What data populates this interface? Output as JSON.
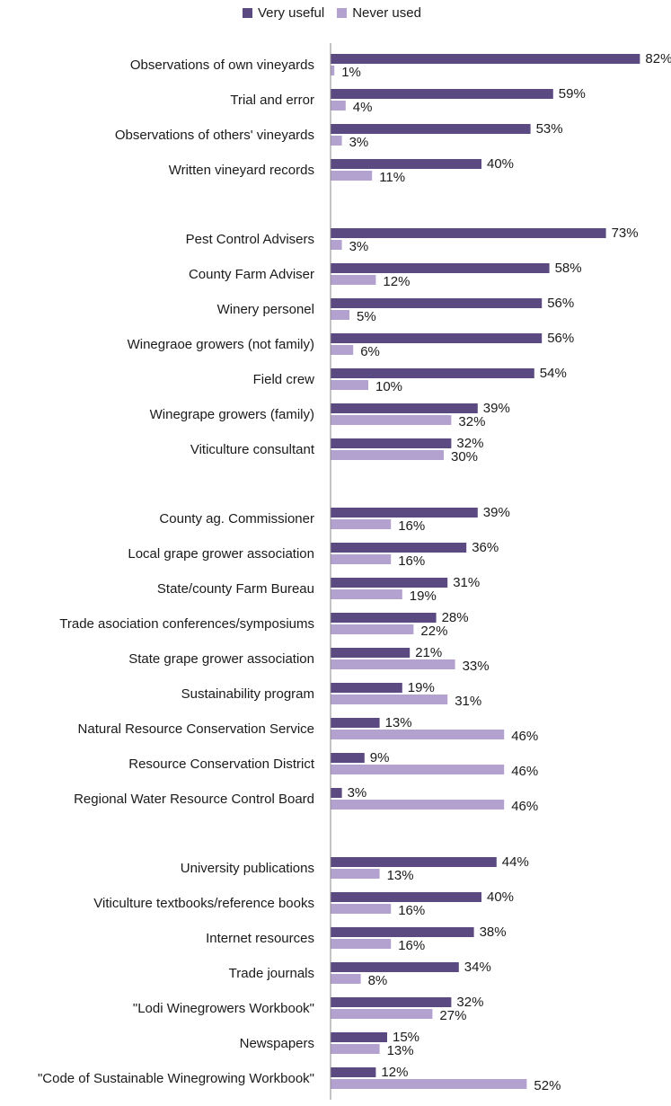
{
  "chart_data": {
    "type": "bar",
    "orientation": "horizontal",
    "xlim": [
      0,
      100
    ],
    "grid": false,
    "legend_position": "top",
    "colors": {
      "very_useful": "#5b4a82",
      "never_used": "#b3a2cf"
    },
    "series": [
      {
        "name": "Very useful",
        "key": "very_useful"
      },
      {
        "name": "Never used",
        "key": "never_used"
      }
    ],
    "groups": [
      {
        "items": [
          {
            "label": "Observations of own vineyards",
            "very_useful": 82,
            "never_used": 1
          },
          {
            "label": "Trial and error",
            "very_useful": 59,
            "never_used": 4
          },
          {
            "label": "Observations of others' vineyards",
            "very_useful": 53,
            "never_used": 3
          },
          {
            "label": "Written vineyard records",
            "very_useful": 40,
            "never_used": 11
          }
        ]
      },
      {
        "items": [
          {
            "label": "Pest Control Advisers",
            "very_useful": 73,
            "never_used": 3
          },
          {
            "label": "County Farm Adviser",
            "very_useful": 58,
            "never_used": 12
          },
          {
            "label": "Winery personel",
            "very_useful": 56,
            "never_used": 5
          },
          {
            "label": "Winegraoe growers (not family)",
            "very_useful": 56,
            "never_used": 6
          },
          {
            "label": "Field crew",
            "very_useful": 54,
            "never_used": 10
          },
          {
            "label": "Winegrape growers (family)",
            "very_useful": 39,
            "never_used": 32
          },
          {
            "label": "Viticulture consultant",
            "very_useful": 32,
            "never_used": 30
          }
        ]
      },
      {
        "items": [
          {
            "label": "County ag. Commissioner",
            "very_useful": 39,
            "never_used": 16
          },
          {
            "label": "Local grape grower association",
            "very_useful": 36,
            "never_used": 16
          },
          {
            "label": "State/county Farm Bureau",
            "very_useful": 31,
            "never_used": 19
          },
          {
            "label": "Trade asociation conferences/symposiums",
            "very_useful": 28,
            "never_used": 22
          },
          {
            "label": "State grape grower association",
            "very_useful": 21,
            "never_used": 33
          },
          {
            "label": "Sustainability program",
            "very_useful": 19,
            "never_used": 31
          },
          {
            "label": "Natural Resource Conservation Service",
            "very_useful": 13,
            "never_used": 46
          },
          {
            "label": "Resource Conservation District",
            "very_useful": 9,
            "never_used": 46
          },
          {
            "label": "Regional Water Resource Control Board",
            "very_useful": 3,
            "never_used": 46
          }
        ]
      },
      {
        "items": [
          {
            "label": "University publications",
            "very_useful": 44,
            "never_used": 13
          },
          {
            "label": "Viticulture textbooks/reference books",
            "very_useful": 40,
            "never_used": 16
          },
          {
            "label": "Internet resources",
            "very_useful": 38,
            "never_used": 16
          },
          {
            "label": "Trade journals",
            "very_useful": 34,
            "never_used": 8
          },
          {
            "label": "\"Lodi Winegrowers Workbook\"",
            "very_useful": 32,
            "never_used": 27
          },
          {
            "label": "Newspapers",
            "very_useful": 15,
            "never_used": 13
          },
          {
            "label": "\"Code of Sustainable Winegrowing Workbook\"",
            "very_useful": 12,
            "never_used": 52
          }
        ]
      }
    ]
  }
}
